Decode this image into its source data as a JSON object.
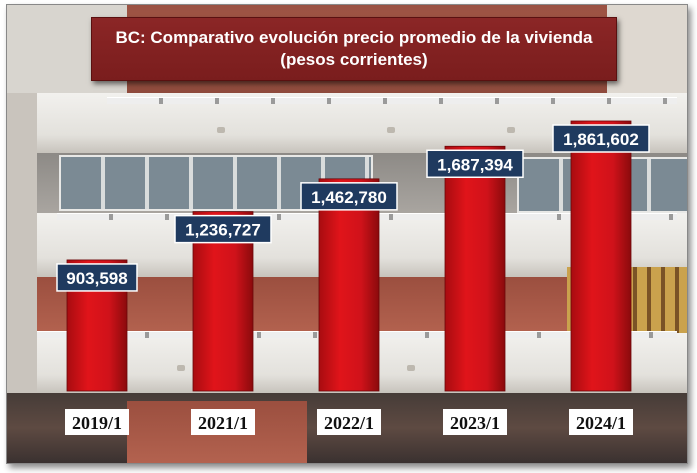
{
  "title_line1": "BC: Comparativo evolución precio promedio de la vivienda",
  "title_line2": "(pesos corrientes)",
  "colors": {
    "bar": "#e0141a",
    "bar_dark": "#8a0a0c",
    "label_box": "#1f3a5f",
    "title_box": "#8b2626"
  },
  "chart_data": {
    "type": "bar",
    "title": "BC: Comparativo evolución precio promedio de la vivienda (pesos corrientes)",
    "categories": [
      "2019/1",
      "2021/1",
      "2022/1",
      "2023/1",
      "2024/1"
    ],
    "values": [
      903598,
      1236727,
      1462780,
      1687394,
      1861602
    ],
    "value_labels": [
      "903,598",
      "1,236,727",
      "1,462,780",
      "1,687,394",
      "1,861,602"
    ],
    "ylim": [
      0,
      2000000
    ],
    "grid": false,
    "legend": "none"
  }
}
